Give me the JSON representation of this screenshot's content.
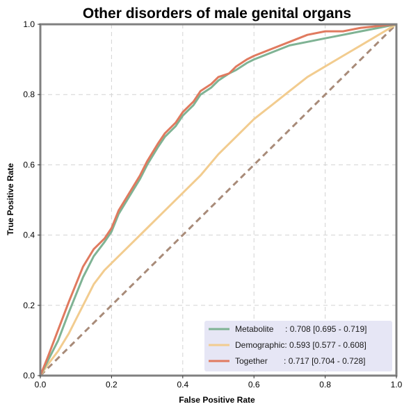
{
  "chart_data": {
    "type": "line",
    "title": "Other disorders of male genital organs",
    "xlabel": "False Positive Rate",
    "ylabel": "True Positive Rate",
    "xlim": [
      0,
      1
    ],
    "ylim": [
      0,
      1
    ],
    "xticks": [
      "0.0",
      "0.2",
      "0.4",
      "0.6",
      "0.8",
      "1.0"
    ],
    "yticks": [
      "0.0",
      "0.2",
      "0.4",
      "0.6",
      "0.8",
      "1.0"
    ],
    "grid": true,
    "legend_position": "lower-right",
    "series": [
      {
        "name": "Metabolite",
        "legend_label": "Metabolite     : 0.708 [0.695 - 0.719]",
        "color": "#7fb394",
        "x": [
          0,
          0.02,
          0.05,
          0.08,
          0.1,
          0.12,
          0.15,
          0.18,
          0.2,
          0.22,
          0.25,
          0.28,
          0.3,
          0.33,
          0.35,
          0.38,
          0.4,
          0.43,
          0.45,
          0.48,
          0.5,
          0.53,
          0.55,
          0.58,
          0.6,
          0.65,
          0.7,
          0.75,
          0.8,
          0.85,
          0.9,
          0.95,
          1.0
        ],
        "y": [
          0,
          0.04,
          0.1,
          0.18,
          0.23,
          0.28,
          0.34,
          0.38,
          0.41,
          0.46,
          0.51,
          0.56,
          0.6,
          0.65,
          0.68,
          0.71,
          0.74,
          0.77,
          0.8,
          0.82,
          0.84,
          0.86,
          0.87,
          0.89,
          0.9,
          0.92,
          0.94,
          0.95,
          0.96,
          0.97,
          0.98,
          0.99,
          1.0
        ]
      },
      {
        "name": "Demographic",
        "legend_label": "Demographic: 0.593 [0.577 - 0.608]",
        "color": "#f2cc8f",
        "x": [
          0,
          0.02,
          0.05,
          0.08,
          0.1,
          0.13,
          0.15,
          0.18,
          0.2,
          0.25,
          0.3,
          0.35,
          0.4,
          0.45,
          0.5,
          0.55,
          0.6,
          0.65,
          0.7,
          0.75,
          0.8,
          0.85,
          0.9,
          0.95,
          1.0
        ],
        "y": [
          0,
          0.03,
          0.07,
          0.12,
          0.16,
          0.22,
          0.26,
          0.3,
          0.32,
          0.37,
          0.42,
          0.47,
          0.52,
          0.57,
          0.63,
          0.68,
          0.73,
          0.77,
          0.81,
          0.85,
          0.88,
          0.91,
          0.94,
          0.97,
          1.0
        ]
      },
      {
        "name": "Together",
        "legend_label": "Together       : 0.717 [0.704 - 0.728]",
        "color": "#e07a5f",
        "x": [
          0,
          0.02,
          0.05,
          0.08,
          0.1,
          0.12,
          0.15,
          0.18,
          0.2,
          0.22,
          0.25,
          0.28,
          0.3,
          0.33,
          0.35,
          0.38,
          0.4,
          0.43,
          0.45,
          0.48,
          0.5,
          0.53,
          0.55,
          0.58,
          0.6,
          0.65,
          0.7,
          0.75,
          0.8,
          0.85,
          0.9,
          0.95,
          1.0
        ],
        "y": [
          0,
          0.05,
          0.13,
          0.21,
          0.26,
          0.31,
          0.36,
          0.39,
          0.42,
          0.47,
          0.52,
          0.57,
          0.61,
          0.66,
          0.69,
          0.72,
          0.75,
          0.78,
          0.81,
          0.83,
          0.85,
          0.86,
          0.88,
          0.9,
          0.91,
          0.93,
          0.95,
          0.97,
          0.98,
          0.98,
          0.99,
          0.995,
          1.0
        ]
      }
    ],
    "reference_line": {
      "x": [
        0,
        1
      ],
      "y": [
        0,
        1
      ],
      "color": "#a88b79",
      "style": "dashed"
    },
    "frame_color": "#808080",
    "grid_color": "#d3d3d3",
    "legend_background": "#e6e6f5"
  }
}
